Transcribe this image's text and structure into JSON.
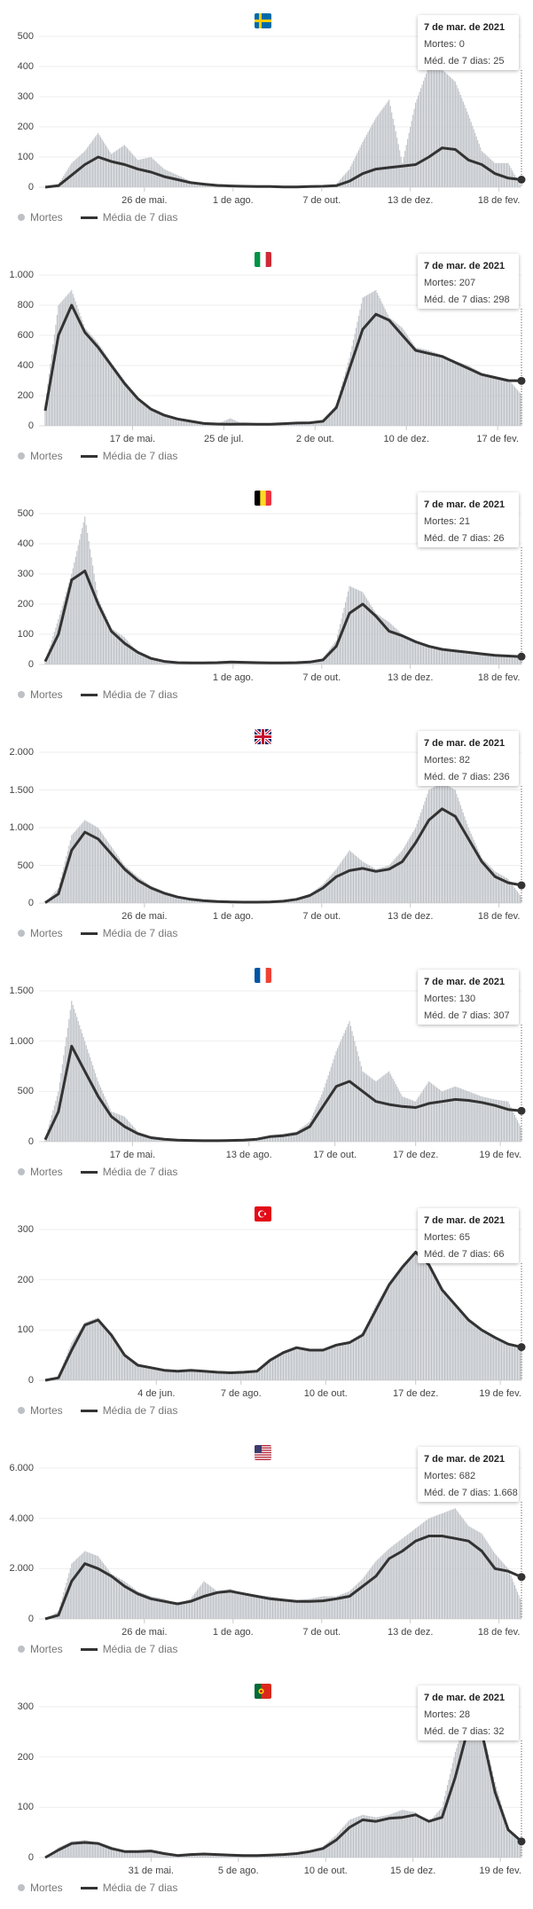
{
  "legend": {
    "deaths_label": "Mortes",
    "avg_label": "Média de 7 dias"
  },
  "colors": {
    "bars": "#bdc1c6",
    "line": "#333333",
    "grid": "#eeeeee"
  },
  "chart_data": [
    {
      "type": "bar",
      "country": "Sweden",
      "flag_icon": "flag-sweden-icon",
      "ylim": [
        0,
        500
      ],
      "yticks": [
        {
          "v": 0,
          "label": "0"
        },
        {
          "v": 100,
          "label": "100"
        },
        {
          "v": 200,
          "label": "200"
        },
        {
          "v": 300,
          "label": "300"
        },
        {
          "v": 400,
          "label": "400"
        },
        {
          "v": 500,
          "label": "500"
        }
      ],
      "xticks": [
        {
          "day": 86,
          "label": "26 de mai."
        },
        {
          "day": 153,
          "label": "1 de ago."
        },
        {
          "day": 220,
          "label": "7 de out."
        },
        {
          "day": 287,
          "label": "13 de dez."
        },
        {
          "day": 354,
          "label": "18 de fev."
        }
      ],
      "tooltip": {
        "date": "7 de mar. de 2021",
        "deaths": "Mortes: 0",
        "avg": "Méd. de 7 dias: 25"
      },
      "x_start_day": 11,
      "x_step_days": 10,
      "deaths": [
        0,
        10,
        80,
        120,
        180,
        110,
        140,
        90,
        100,
        60,
        40,
        20,
        12,
        8,
        5,
        4,
        3,
        2,
        1,
        2,
        3,
        5,
        10,
        60,
        150,
        230,
        290,
        80,
        280,
        400,
        390,
        350,
        240,
        120,
        80,
        80,
        0
      ],
      "avg": [
        0,
        5,
        40,
        75,
        100,
        85,
        75,
        60,
        50,
        35,
        25,
        15,
        10,
        6,
        4,
        3,
        2,
        2,
        1,
        1,
        2,
        3,
        5,
        20,
        45,
        60,
        65,
        70,
        75,
        100,
        130,
        125,
        90,
        75,
        45,
        30,
        25
      ]
    },
    {
      "type": "bar",
      "country": "Italy",
      "flag_icon": "flag-italy-icon",
      "ylim": [
        0,
        1000
      ],
      "yticks": [
        {
          "v": 0,
          "label": "0"
        },
        {
          "v": 200,
          "label": "200"
        },
        {
          "v": 400,
          "label": "400"
        },
        {
          "v": 600,
          "label": "600"
        },
        {
          "v": 800,
          "label": "800"
        },
        {
          "v": 1000,
          "label": "1.000"
        }
      ],
      "xticks": [
        {
          "day": 77,
          "label": "17 de mai."
        },
        {
          "day": 146,
          "label": "25 de jul."
        },
        {
          "day": 215,
          "label": "2 de out."
        },
        {
          "day": 284,
          "label": "10 de dez."
        },
        {
          "day": 353,
          "label": "17 de fev."
        }
      ],
      "tooltip": {
        "date": "7 de mar. de 2021",
        "deaths": "Mortes: 207",
        "avg": "Méd. de 7 dias: 298"
      },
      "x_start_day": 11,
      "x_step_days": 10,
      "deaths": [
        150,
        800,
        900,
        650,
        550,
        420,
        300,
        190,
        120,
        80,
        50,
        30,
        15,
        12,
        50,
        10,
        10,
        10,
        14,
        18,
        20,
        35,
        140,
        450,
        850,
        900,
        720,
        650,
        520,
        500,
        470,
        430,
        400,
        350,
        330,
        310,
        207
      ],
      "avg": [
        100,
        600,
        800,
        620,
        520,
        400,
        280,
        180,
        110,
        70,
        45,
        30,
        15,
        12,
        10,
        12,
        10,
        10,
        14,
        18,
        20,
        30,
        120,
        380,
        640,
        740,
        700,
        600,
        500,
        480,
        460,
        420,
        380,
        340,
        320,
        300,
        298
      ]
    },
    {
      "type": "bar",
      "country": "Belgium",
      "flag_icon": "flag-belgium-icon",
      "ylim": [
        0,
        500
      ],
      "yticks": [
        {
          "v": 0,
          "label": "0"
        },
        {
          "v": 100,
          "label": "100"
        },
        {
          "v": 200,
          "label": "200"
        },
        {
          "v": 300,
          "label": "300"
        },
        {
          "v": 400,
          "label": "400"
        },
        {
          "v": 500,
          "label": "500"
        }
      ],
      "xticks": [
        {
          "day": 153,
          "label": "1 de ago."
        },
        {
          "day": 220,
          "label": "7 de out."
        },
        {
          "day": 287,
          "label": "13 de dez."
        },
        {
          "day": 354,
          "label": "18 de fev."
        }
      ],
      "tooltip": {
        "date": "7 de mar. de 2021",
        "deaths": "Mortes: 21",
        "avg": "Méd. de 7 dias: 26"
      },
      "x_start_day": 11,
      "x_step_days": 10,
      "deaths": [
        10,
        150,
        300,
        490,
        220,
        120,
        90,
        40,
        20,
        10,
        6,
        5,
        5,
        6,
        10,
        7,
        6,
        5,
        5,
        6,
        10,
        20,
        80,
        260,
        240,
        170,
        140,
        100,
        80,
        60,
        55,
        45,
        40,
        35,
        30,
        30,
        21
      ],
      "avg": [
        10,
        100,
        280,
        310,
        200,
        110,
        70,
        40,
        20,
        10,
        6,
        5,
        5,
        6,
        8,
        7,
        6,
        5,
        5,
        6,
        8,
        15,
        60,
        170,
        200,
        160,
        110,
        95,
        75,
        60,
        50,
        45,
        40,
        35,
        30,
        28,
        26
      ]
    },
    {
      "type": "bar",
      "country": "United Kingdom",
      "flag_icon": "flag-uk-icon",
      "ylim": [
        0,
        2000
      ],
      "yticks": [
        {
          "v": 0,
          "label": "0"
        },
        {
          "v": 500,
          "label": "500"
        },
        {
          "v": 1000,
          "label": "1.000"
        },
        {
          "v": 1500,
          "label": "1.500"
        },
        {
          "v": 2000,
          "label": "2.000"
        }
      ],
      "xticks": [
        {
          "day": 86,
          "label": "26 de mai."
        },
        {
          "day": 153,
          "label": "1 de ago."
        },
        {
          "day": 220,
          "label": "7 de out."
        },
        {
          "day": 287,
          "label": "13 de dez."
        },
        {
          "day": 354,
          "label": "18 de fev."
        }
      ],
      "tooltip": {
        "date": "7 de mar. de 2021",
        "deaths": "Mortes: 82",
        "avg": "Méd. de 7 dias: 236"
      },
      "x_start_day": 11,
      "x_step_days": 10,
      "deaths": [
        5,
        200,
        900,
        1100,
        1000,
        750,
        500,
        350,
        230,
        150,
        90,
        60,
        35,
        20,
        15,
        12,
        12,
        15,
        30,
        60,
        120,
        250,
        450,
        700,
        550,
        450,
        500,
        700,
        1000,
        1500,
        1600,
        1500,
        1000,
        600,
        420,
        320,
        82
      ],
      "avg": [
        5,
        120,
        700,
        940,
        850,
        650,
        450,
        300,
        200,
        130,
        80,
        50,
        30,
        20,
        15,
        12,
        12,
        15,
        25,
        50,
        100,
        200,
        350,
        430,
        460,
        420,
        450,
        550,
        800,
        1100,
        1250,
        1150,
        850,
        550,
        350,
        270,
        236
      ]
    },
    {
      "type": "bar",
      "country": "France",
      "flag_icon": "flag-france-icon",
      "ylim": [
        0,
        1500
      ],
      "yticks": [
        {
          "v": 0,
          "label": "0"
        },
        {
          "v": 500,
          "label": "500"
        },
        {
          "v": 1000,
          "label": "1.000"
        },
        {
          "v": 1500,
          "label": "1.500"
        }
      ],
      "xticks": [
        {
          "day": 77,
          "label": "17 de mai."
        },
        {
          "day": 165,
          "label": "13 de ago."
        },
        {
          "day": 230,
          "label": "17 de out."
        },
        {
          "day": 291,
          "label": "17 de dez."
        },
        {
          "day": 355,
          "label": "19 de fev."
        }
      ],
      "tooltip": {
        "date": "7 de mar. de 2021",
        "deaths": "Mortes: 130",
        "avg": "Méd. de 7 dias: 307"
      },
      "x_start_day": 11,
      "x_step_days": 10,
      "deaths": [
        30,
        500,
        1400,
        1000,
        600,
        300,
        250,
        100,
        50,
        30,
        20,
        15,
        10,
        10,
        15,
        20,
        30,
        60,
        80,
        100,
        200,
        500,
        900,
        1200,
        700,
        600,
        700,
        450,
        400,
        600,
        500,
        550,
        500,
        450,
        420,
        400,
        130
      ],
      "avg": [
        20,
        300,
        950,
        700,
        450,
        250,
        150,
        80,
        40,
        25,
        15,
        12,
        10,
        10,
        12,
        15,
        25,
        50,
        60,
        80,
        150,
        350,
        550,
        600,
        500,
        400,
        370,
        350,
        340,
        380,
        400,
        420,
        410,
        390,
        360,
        320,
        307
      ]
    },
    {
      "type": "bar",
      "country": "Turkey",
      "flag_icon": "flag-turkey-icon",
      "ylim": [
        0,
        300
      ],
      "yticks": [
        {
          "v": 0,
          "label": "0"
        },
        {
          "v": 100,
          "label": "100"
        },
        {
          "v": 200,
          "label": "200"
        },
        {
          "v": 300,
          "label": "300"
        }
      ],
      "xticks": [
        {
          "day": 95,
          "label": "4 de jun."
        },
        {
          "day": 159,
          "label": "7 de ago."
        },
        {
          "day": 223,
          "label": "10 de out."
        },
        {
          "day": 291,
          "label": "17 de dez."
        },
        {
          "day": 355,
          "label": "19 de fev."
        }
      ],
      "tooltip": {
        "date": "7 de mar. de 2021",
        "deaths": "Mortes: 65",
        "avg": "Méd. de 7 dias: 66"
      },
      "x_start_day": 11,
      "x_step_days": 10,
      "deaths": [
        0,
        8,
        75,
        115,
        125,
        88,
        48,
        30,
        24,
        19,
        18,
        20,
        18,
        16,
        15,
        17,
        20,
        42,
        58,
        66,
        62,
        63,
        72,
        78,
        95,
        150,
        195,
        230,
        258,
        228,
        178,
        148,
        118,
        98,
        84,
        70,
        65
      ],
      "avg": [
        0,
        5,
        60,
        110,
        120,
        90,
        50,
        30,
        25,
        20,
        18,
        20,
        18,
        16,
        15,
        16,
        18,
        40,
        55,
        65,
        60,
        60,
        70,
        75,
        90,
        140,
        190,
        225,
        255,
        230,
        180,
        150,
        120,
        100,
        85,
        72,
        66
      ]
    },
    {
      "type": "bar",
      "country": "United States",
      "flag_icon": "flag-usa-icon",
      "ylim": [
        0,
        6000
      ],
      "yticks": [
        {
          "v": 0,
          "label": "0"
        },
        {
          "v": 2000,
          "label": "2.000"
        },
        {
          "v": 4000,
          "label": "4.000"
        },
        {
          "v": 6000,
          "label": "6.000"
        }
      ],
      "xticks": [
        {
          "day": 86,
          "label": "26 de mai."
        },
        {
          "day": 153,
          "label": "1 de ago."
        },
        {
          "day": 220,
          "label": "7 de out."
        },
        {
          "day": 287,
          "label": "13 de dez."
        },
        {
          "day": 354,
          "label": "18 de fev."
        }
      ],
      "tooltip": {
        "date": "7 de mar. de 2021",
        "deaths": "Mortes: 682",
        "avg": "Méd. de 7 dias: 1.668"
      },
      "x_start_day": 11,
      "x_step_days": 10,
      "deaths": [
        5,
        300,
        2200,
        2700,
        2500,
        1800,
        1500,
        1100,
        900,
        800,
        600,
        800,
        1500,
        1100,
        1200,
        1000,
        950,
        900,
        800,
        750,
        800,
        900,
        900,
        1100,
        1600,
        2300,
        2800,
        3200,
        3600,
        4000,
        4200,
        4400,
        3700,
        3400,
        2600,
        2000,
        682
      ],
      "avg": [
        5,
        150,
        1500,
        2200,
        2000,
        1700,
        1300,
        1000,
        800,
        700,
        600,
        700,
        900,
        1050,
        1100,
        1000,
        900,
        800,
        750,
        700,
        700,
        720,
        800,
        900,
        1300,
        1700,
        2400,
        2700,
        3100,
        3300,
        3300,
        3200,
        3100,
        2700,
        2000,
        1900,
        1668
      ]
    },
    {
      "type": "bar",
      "country": "Portugal",
      "flag_icon": "flag-portugal-icon",
      "ylim": [
        0,
        300
      ],
      "yticks": [
        {
          "v": 0,
          "label": "0"
        },
        {
          "v": 100,
          "label": "100"
        },
        {
          "v": 200,
          "label": "200"
        },
        {
          "v": 300,
          "label": "300"
        }
      ],
      "xticks": [
        {
          "day": 91,
          "label": "31 de mai."
        },
        {
          "day": 157,
          "label": "5 de ago."
        },
        {
          "day": 223,
          "label": "10 de out."
        },
        {
          "day": 289,
          "label": "15 de dez."
        },
        {
          "day": 355,
          "label": "19 de fev."
        }
      ],
      "tooltip": {
        "date": "7 de mar. de 2021",
        "deaths": "Mortes: 28",
        "avg": "Méd. de 7 dias: 32"
      },
      "x_start_day": 11,
      "x_step_days": 10,
      "deaths": [
        0,
        20,
        32,
        35,
        30,
        22,
        14,
        13,
        14,
        9,
        5,
        7,
        8,
        6,
        5,
        4,
        5,
        6,
        7,
        10,
        14,
        22,
        45,
        75,
        85,
        80,
        85,
        95,
        90,
        70,
        100,
        210,
        290,
        260,
        150,
        60,
        28
      ],
      "avg": [
        0,
        15,
        28,
        30,
        28,
        18,
        12,
        12,
        13,
        8,
        4,
        6,
        7,
        6,
        5,
        4,
        4,
        5,
        6,
        8,
        12,
        18,
        35,
        60,
        75,
        72,
        78,
        80,
        85,
        72,
        80,
        160,
        260,
        250,
        130,
        55,
        32
      ]
    }
  ]
}
